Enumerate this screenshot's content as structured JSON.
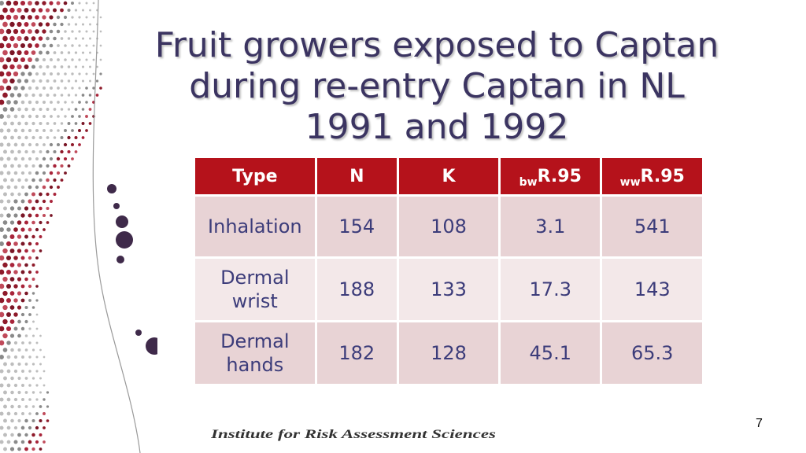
{
  "slide": {
    "title_lines": [
      "Fruit growers exposed to Captan",
      "during re-entry Captan in NL",
      "1991 and 1992"
    ],
    "footer": "Institute for Risk Assessment Sciences",
    "page_number": "7"
  },
  "table": {
    "headers": [
      {
        "sub": "",
        "main": "Type"
      },
      {
        "sub": "",
        "main": "N"
      },
      {
        "sub": "",
        "main": "K"
      },
      {
        "sub": "bw",
        "main": "R.95"
      },
      {
        "sub": "ww",
        "main": "R.95"
      }
    ],
    "rows": [
      [
        "Inhalation",
        "154",
        "108",
        "3.1",
        "541"
      ],
      [
        "Dermal wrist",
        "188",
        "133",
        "17.3",
        "143"
      ],
      [
        "Dermal hands",
        "182",
        "128",
        "45.1",
        "65.3"
      ]
    ]
  },
  "colors": {
    "header_bg": "#b5121b",
    "title_color": "#3b3461",
    "row_odd": "#e8d3d5",
    "row_even": "#f3e8e9"
  }
}
